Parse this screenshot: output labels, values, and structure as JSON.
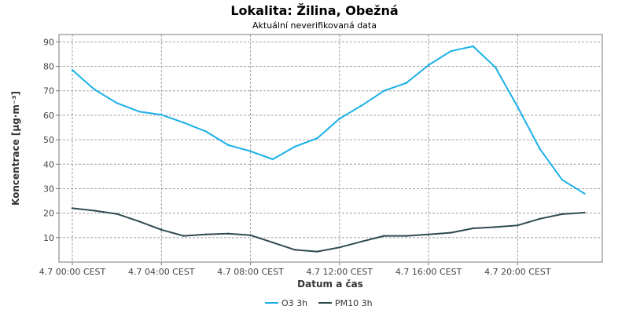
{
  "chart_data": {
    "type": "line",
    "title": "Lokalita: Žilina, Obežná",
    "subtitle": "Aktuální neverifikovaná data",
    "xlabel": "Datum a čas",
    "ylabel": "Koncentrace [µg·m⁻³]",
    "ylim": [
      0,
      93
    ],
    "yticks": [
      10,
      20,
      30,
      40,
      50,
      60,
      70,
      80,
      90
    ],
    "xlim": [
      -0.6,
      23.8
    ],
    "xticks": [
      {
        "x": 0,
        "label": "4.7 00:00 CEST"
      },
      {
        "x": 4,
        "label": "4.7 04:00 CEST"
      },
      {
        "x": 8,
        "label": "4.7 08:00 CEST"
      },
      {
        "x": 12,
        "label": "4.7 12:00 CEST"
      },
      {
        "x": 16,
        "label": "4.7 16:00 CEST"
      },
      {
        "x": 20,
        "label": "4.7 20:00 CEST"
      }
    ],
    "grid": true,
    "legend_position": "bottom-center",
    "x": [
      0,
      1,
      2,
      3,
      4,
      5,
      6,
      7,
      8,
      9,
      10,
      11,
      12,
      13,
      14,
      15,
      16,
      17,
      18,
      19,
      20,
      21,
      22,
      23
    ],
    "series": [
      {
        "name": "O3 3h",
        "color": "#1ab0e8",
        "values": [
          78.5,
          70.5,
          65,
          61.5,
          60.2,
          57,
          53.4,
          47.8,
          45.3,
          42,
          47.2,
          50.6,
          58.6,
          64,
          70,
          73.2,
          80.5,
          86.2,
          88.2,
          79.6,
          63.4,
          46.2,
          33.6,
          28
        ]
      },
      {
        "name": "PM10 3h",
        "color": "#2e4a4f",
        "values": [
          22,
          21,
          19.7,
          16.6,
          13.2,
          10.7,
          11.3,
          11.6,
          11,
          8,
          5,
          4.3,
          6,
          8.4,
          10.7,
          10.7,
          11.3,
          12,
          13.8,
          14.3,
          15,
          17.7,
          19.6,
          20.2
        ]
      }
    ]
  }
}
